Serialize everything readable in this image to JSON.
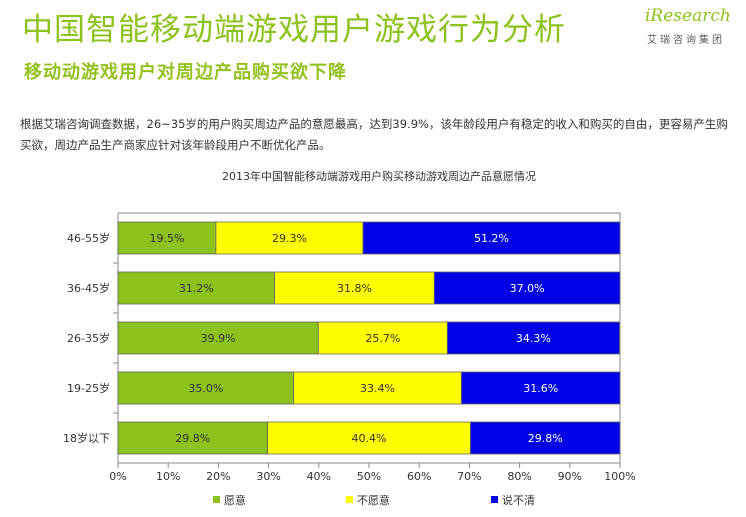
{
  "header": {
    "title": "中国智能移动端游戏用户游戏行为分析",
    "subtitle": "移动动游戏用户对周边产品购买欲下降",
    "logo_brand": "iResearch",
    "logo_sub": "艾瑞咨询集团"
  },
  "description": "根据艾瑞咨询调查数据，26~35岁的用户购买周边产品的意愿最高，达到39.9%，该年龄段用户有稳定的收入和购买的自由，更容易产生购买欲，周边产品生产商家应针对该年龄段用户不断优化产品。",
  "colors": {
    "accent": "#8cc21b",
    "series_1": "#8cc21b",
    "series_2": "#ffff00",
    "series_3": "#0000e6"
  },
  "chart_data": {
    "type": "bar",
    "orientation": "horizontal",
    "stacked": true,
    "title": "2013年中国智能移动端游戏用户购买移动游戏周边产品意愿情况",
    "categories": [
      "46-55岁",
      "36-45岁",
      "26-35岁",
      "19-25岁",
      "18岁以下"
    ],
    "series": [
      {
        "name": "愿意",
        "values": [
          19.5,
          31.2,
          39.9,
          35.0,
          29.8
        ],
        "labels": [
          "19.5%",
          "31.2%",
          "39.9%",
          "35.0%",
          "29.8%"
        ],
        "color": "#8cc21b"
      },
      {
        "name": "不愿意",
        "values": [
          29.3,
          31.8,
          25.7,
          33.4,
          40.4
        ],
        "labels": [
          "29.3%",
          "31.8%",
          "25.7%",
          "33.4%",
          "40.4%"
        ],
        "color": "#ffff00"
      },
      {
        "name": "说不清",
        "values": [
          51.2,
          37.0,
          34.3,
          31.6,
          29.8
        ],
        "labels": [
          "51.2%",
          "37.0%",
          "34.3%",
          "31.6%",
          "29.8%"
        ],
        "color": "#0000e6"
      }
    ],
    "x_ticks": [
      "0%",
      "10%",
      "20%",
      "30%",
      "40%",
      "50%",
      "60%",
      "70%",
      "80%",
      "90%",
      "100%"
    ],
    "xlim": [
      0,
      100
    ],
    "legend_position": "bottom"
  }
}
